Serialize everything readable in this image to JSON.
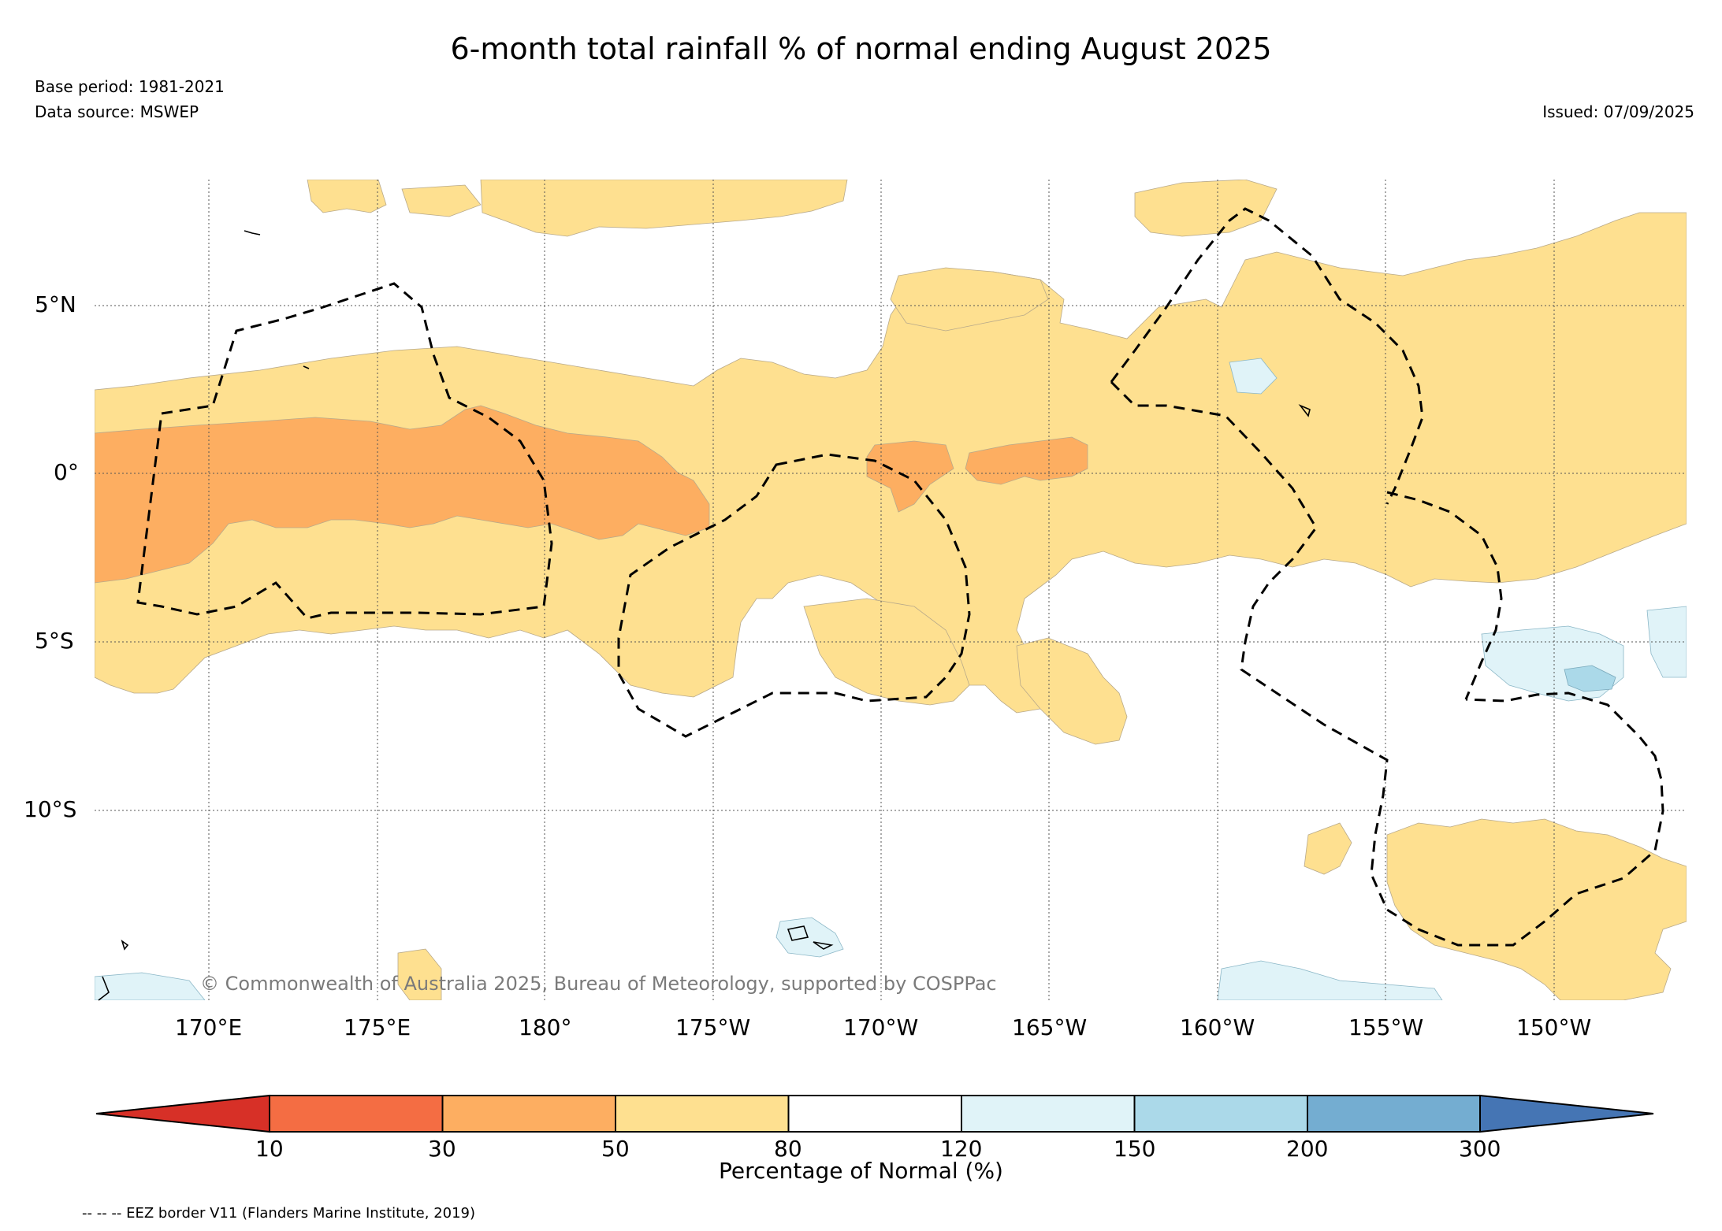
{
  "header": {
    "title": "6-month total rainfall % of normal ending August 2025",
    "base_period": "Base period: 1981-2021",
    "data_source": "Data source: MSWEP",
    "issued": "Issued: 07/09/2025"
  },
  "map": {
    "lat_labels": [
      "5°N",
      "0°",
      "5°S",
      "10°S"
    ],
    "lon_labels": [
      "170°E",
      "175°E",
      "180°",
      "175°W",
      "170°W",
      "165°W",
      "160°W",
      "155°W",
      "150°W"
    ],
    "copyright": "© Commonwealth of Australia 2025, Bureau of Meteorology, supported by COSPPac",
    "colors": {
      "below_10": "#d73027",
      "10_30": "#f46d43",
      "30_50": "#fdae61",
      "50_80": "#fee090",
      "80_120": "#ffffff",
      "120_150": "#e0f3f8",
      "150_200": "#abd9e9",
      "200_300": "#74add1",
      "above_300": "#4575b4",
      "eez_line": "#000000",
      "grid": "#555555"
    }
  },
  "colorbar": {
    "ticks": [
      "10",
      "30",
      "50",
      "80",
      "120",
      "150",
      "200",
      "300"
    ],
    "label": "Percentage of Normal (%)"
  },
  "footer": {
    "eez_note": "-- -- -- EEZ border V11 (Flanders Marine Institute, 2019)"
  }
}
